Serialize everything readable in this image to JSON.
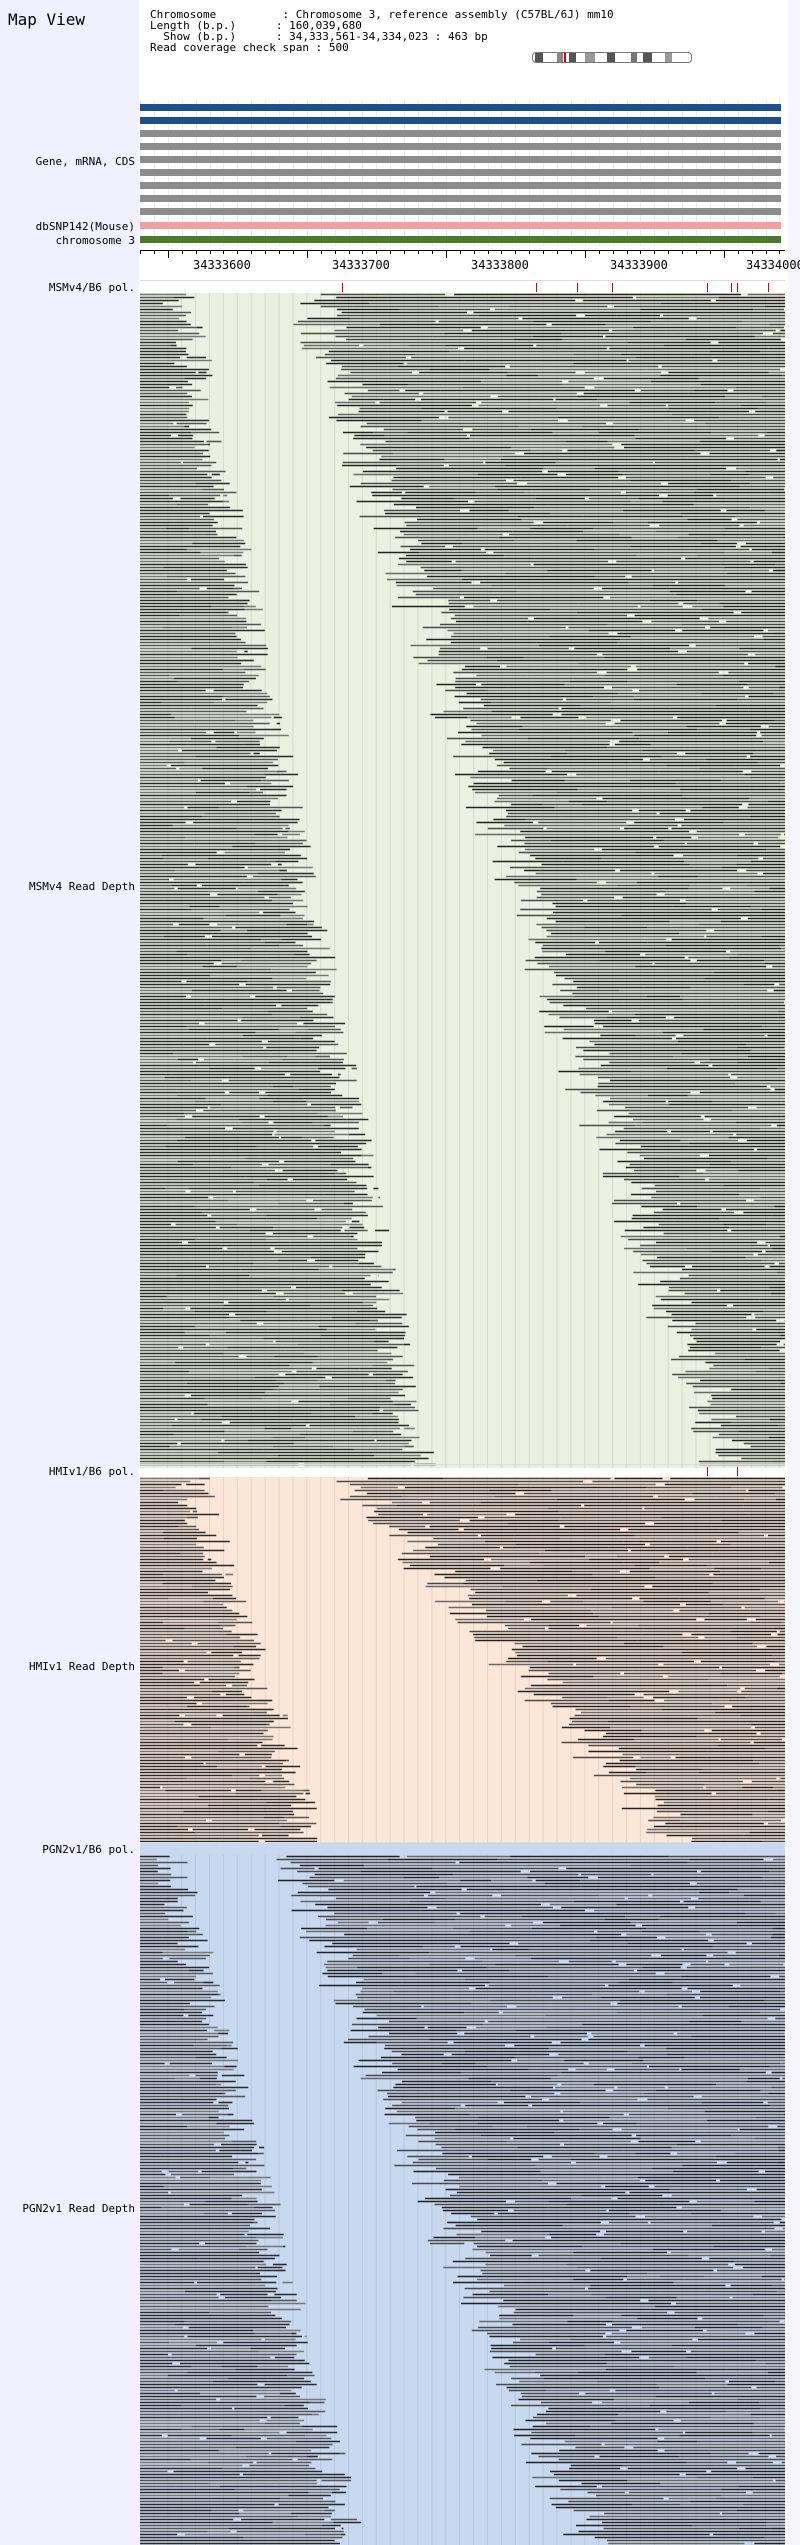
{
  "title": "Map View",
  "info": {
    "chromosome_label": "Chromosome",
    "chromosome_value": "Chromosome 3, reference assembly (C57BL/6J) mm10",
    "length_label": "Length (b.p.)",
    "length_value": "160,039,680",
    "show_label": "Show (b.p.)",
    "show_value": "34,333,561-34,334,023 : 463 bp",
    "coverage_label": "Read coverage check span",
    "coverage_value": "500"
  },
  "tracks": {
    "gene_label": "Gene, mRNA, CDS",
    "dbsnp_label": "dbSNP142(Mouse)",
    "chromosome_label": "chromosome 3"
  },
  "ruler": {
    "ticks": [
      "34333600",
      "34333700",
      "34333800",
      "34333900",
      "34334000"
    ]
  },
  "strains": [
    {
      "pol_label": "MSMv4/B6 pol.",
      "depth_label": "MSMv4 Read Depth",
      "bg": "#ebf0e0"
    },
    {
      "pol_label": "HMIv1/B6 pol.",
      "depth_label": "HMIv1 Read Depth",
      "bg": "#fbe6d8"
    },
    {
      "pol_label": "PGN2v1/B6 pol.",
      "depth_label": "PGN2v1 Read Depth",
      "bg": "#c8d8ee"
    }
  ],
  "colors": {
    "gene_blue": "#1f4e8c",
    "gene_gray": "#8c8c8c",
    "snp_pink": "#f0a0a0",
    "chromosome_green": "#4a7a2a",
    "snp_mark": "#e00000"
  }
}
